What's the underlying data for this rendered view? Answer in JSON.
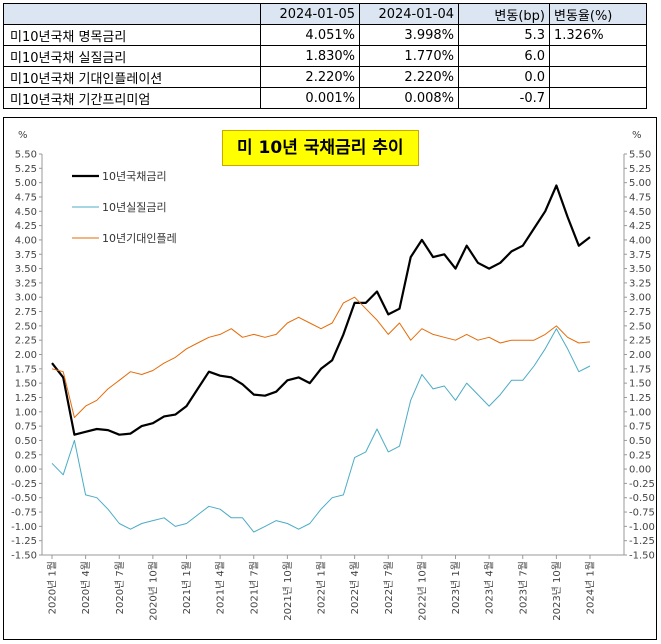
{
  "table": {
    "headers": [
      "",
      "2024-01-05",
      "2024-01-04",
      "변동(bp)",
      "변동율(%)"
    ],
    "rows": [
      {
        "name": "미10년국채 명목금리",
        "d1": "4.051%",
        "d2": "3.998%",
        "bp": "5.3",
        "pct": "1.326%"
      },
      {
        "name": "미10년국채 실질금리",
        "d1": "1.830%",
        "d2": "1.770%",
        "bp": "6.0",
        "pct": ""
      },
      {
        "name": "미10년국채 기대인플레이션",
        "d1": "2.220%",
        "d2": "2.220%",
        "bp": "0.0",
        "pct": ""
      },
      {
        "name": "미10년국채 기간프리미엄",
        "d1": "0.001%",
        "d2": "0.008%",
        "bp": "-0.7",
        "pct": ""
      }
    ]
  },
  "chart_data": {
    "type": "line",
    "title": "미 10년  국채금리  추이",
    "y_unit_left": "%",
    "y_unit_right": "%",
    "ylim": [
      -1.5,
      5.5
    ],
    "y_step": 0.25,
    "x_tick_labels": [
      "2020년 1월",
      "2020년 4월",
      "2020년 7월",
      "2020년 10월",
      "2021년 1월",
      "2021년 4월",
      "2021년 7월",
      "2021년 10월",
      "2022년 1월",
      "2022년 4월",
      "2022년 7월",
      "2022년 10월",
      "2023년 1월",
      "2023년 4월",
      "2023년 7월",
      "2023년 10월",
      "2024년 1월"
    ],
    "x_start": "2020-01",
    "x_end": "2024-01",
    "series": [
      {
        "name": "10년국채금리",
        "color": "#000000",
        "width": 2.2,
        "x": [
          "2020-01",
          "2020-02",
          "2020-03",
          "2020-04",
          "2020-05",
          "2020-06",
          "2020-07",
          "2020-08",
          "2020-09",
          "2020-10",
          "2020-11",
          "2020-12",
          "2021-01",
          "2021-02",
          "2021-03",
          "2021-04",
          "2021-05",
          "2021-06",
          "2021-07",
          "2021-08",
          "2021-09",
          "2021-10",
          "2021-11",
          "2021-12",
          "2022-01",
          "2022-02",
          "2022-03",
          "2022-04",
          "2022-05",
          "2022-06",
          "2022-07",
          "2022-08",
          "2022-09",
          "2022-10",
          "2022-11",
          "2022-12",
          "2023-01",
          "2023-02",
          "2023-03",
          "2023-04",
          "2023-05",
          "2023-06",
          "2023-07",
          "2023-08",
          "2023-09",
          "2023-10",
          "2023-11",
          "2023-12",
          "2024-01"
        ],
        "values": [
          1.85,
          1.6,
          0.6,
          0.65,
          0.7,
          0.68,
          0.6,
          0.62,
          0.75,
          0.8,
          0.92,
          0.95,
          1.1,
          1.4,
          1.7,
          1.63,
          1.6,
          1.48,
          1.3,
          1.28,
          1.35,
          1.55,
          1.6,
          1.5,
          1.75,
          1.9,
          2.35,
          2.9,
          2.9,
          3.1,
          2.7,
          2.8,
          3.7,
          4.0,
          3.7,
          3.75,
          3.5,
          3.9,
          3.6,
          3.5,
          3.6,
          3.8,
          3.9,
          4.2,
          4.5,
          4.95,
          4.4,
          3.9,
          4.05
        ]
      },
      {
        "name": "10년실질금리",
        "color": "#4bacc6",
        "width": 1,
        "x": [
          "2020-01",
          "2020-02",
          "2020-03",
          "2020-04",
          "2020-05",
          "2020-06",
          "2020-07",
          "2020-08",
          "2020-09",
          "2020-10",
          "2020-11",
          "2020-12",
          "2021-01",
          "2021-02",
          "2021-03",
          "2021-04",
          "2021-05",
          "2021-06",
          "2021-07",
          "2021-08",
          "2021-09",
          "2021-10",
          "2021-11",
          "2021-12",
          "2022-01",
          "2022-02",
          "2022-03",
          "2022-04",
          "2022-05",
          "2022-06",
          "2022-07",
          "2022-08",
          "2022-09",
          "2022-10",
          "2022-11",
          "2022-12",
          "2023-01",
          "2023-02",
          "2023-03",
          "2023-04",
          "2023-05",
          "2023-06",
          "2023-07",
          "2023-08",
          "2023-09",
          "2023-10",
          "2023-11",
          "2023-12",
          "2024-01"
        ],
        "values": [
          0.1,
          -0.1,
          0.5,
          -0.45,
          -0.5,
          -0.7,
          -0.95,
          -1.05,
          -0.95,
          -0.9,
          -0.85,
          -1.0,
          -0.95,
          -0.8,
          -0.65,
          -0.7,
          -0.85,
          -0.85,
          -1.1,
          -1.0,
          -0.9,
          -0.95,
          -1.05,
          -0.95,
          -0.7,
          -0.5,
          -0.45,
          0.2,
          0.3,
          0.7,
          0.3,
          0.4,
          1.2,
          1.65,
          1.4,
          1.45,
          1.2,
          1.5,
          1.3,
          1.1,
          1.3,
          1.55,
          1.55,
          1.8,
          2.1,
          2.45,
          2.1,
          1.7,
          1.8
        ]
      },
      {
        "name": "10년기대인플레",
        "color": "#e46c0a",
        "width": 1,
        "x": [
          "2020-01",
          "2020-02",
          "2020-03",
          "2020-04",
          "2020-05",
          "2020-06",
          "2020-07",
          "2020-08",
          "2020-09",
          "2020-10",
          "2020-11",
          "2020-12",
          "2021-01",
          "2021-02",
          "2021-03",
          "2021-04",
          "2021-05",
          "2021-06",
          "2021-07",
          "2021-08",
          "2021-09",
          "2021-10",
          "2021-11",
          "2021-12",
          "2022-01",
          "2022-02",
          "2022-03",
          "2022-04",
          "2022-05",
          "2022-06",
          "2022-07",
          "2022-08",
          "2022-09",
          "2022-10",
          "2022-11",
          "2022-12",
          "2023-01",
          "2023-02",
          "2023-03",
          "2023-04",
          "2023-05",
          "2023-06",
          "2023-07",
          "2023-08",
          "2023-09",
          "2023-10",
          "2023-11",
          "2023-12",
          "2024-01"
        ],
        "values": [
          1.75,
          1.7,
          0.9,
          1.1,
          1.2,
          1.4,
          1.55,
          1.7,
          1.65,
          1.72,
          1.85,
          1.95,
          2.1,
          2.2,
          2.3,
          2.35,
          2.45,
          2.3,
          2.35,
          2.3,
          2.35,
          2.55,
          2.65,
          2.55,
          2.45,
          2.55,
          2.9,
          3.0,
          2.8,
          2.6,
          2.35,
          2.55,
          2.25,
          2.45,
          2.35,
          2.3,
          2.25,
          2.35,
          2.25,
          2.3,
          2.2,
          2.25,
          2.25,
          2.25,
          2.35,
          2.5,
          2.3,
          2.2,
          2.22
        ]
      }
    ]
  }
}
